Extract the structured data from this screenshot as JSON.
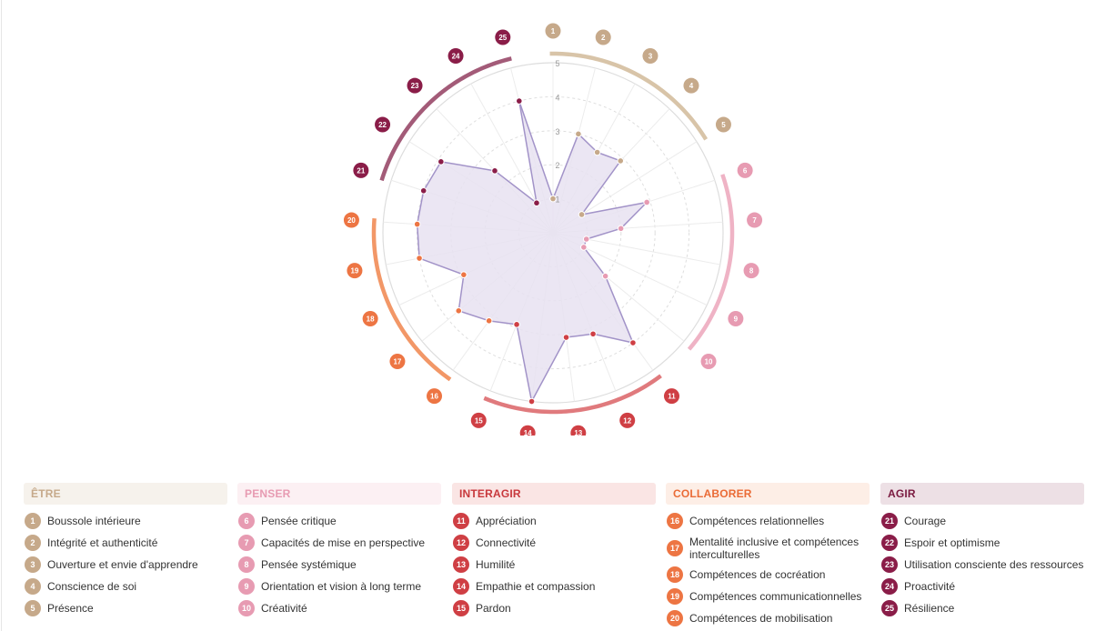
{
  "chart_data": {
    "type": "radar",
    "scale_max": 5,
    "scale_labels": [
      "1",
      "2",
      "3",
      "4",
      "5"
    ],
    "groups": [
      {
        "key": "etre",
        "title": "ÊTRE",
        "color": "#c6a98a",
        "text_color": "#c6a98a",
        "header_bg": "#f6f2ec",
        "items": [
          {
            "num": "1",
            "label": "Boussole intérieure",
            "value": 1
          },
          {
            "num": "2",
            "label": "Intégrité et authenticité",
            "value": 3
          },
          {
            "num": "3",
            "label": "Ouverture et envie d'apprendre",
            "value": 2.7
          },
          {
            "num": "4",
            "label": "Conscience de soi",
            "value": 2.9
          },
          {
            "num": "5",
            "label": "Présence",
            "value": 1
          }
        ]
      },
      {
        "key": "penser",
        "title": "PENSER",
        "color": "#e79bb2",
        "text_color": "#e79bb2",
        "header_bg": "#fcf0f3",
        "items": [
          {
            "num": "6",
            "label": "Pensée critique",
            "value": 2.9
          },
          {
            "num": "7",
            "label": "Capacités de mise en perspective",
            "value": 2
          },
          {
            "num": "8",
            "label": "Pensée systémique",
            "value": 1
          },
          {
            "num": "9",
            "label": "Orientation et vision à long terme",
            "value": 1
          },
          {
            "num": "10",
            "label": "Créativité",
            "value": 2
          }
        ]
      },
      {
        "key": "interagir",
        "title": "INTERAGIR",
        "color": "#cf3f44",
        "text_color": "#c8383c",
        "header_bg": "#fae5e4",
        "items": [
          {
            "num": "11",
            "label": "Appréciation",
            "value": 4
          },
          {
            "num": "12",
            "label": "Connectivité",
            "value": 3.2
          },
          {
            "num": "13",
            "label": "Humilité",
            "value": 3.1
          },
          {
            "num": "14",
            "label": "Empathie et compassion",
            "value": 5
          },
          {
            "num": "15",
            "label": "Pardon",
            "value": 2.9
          }
        ]
      },
      {
        "key": "collaborer",
        "title": "COLLABORER",
        "color": "#ed7543",
        "text_color": "#ea6b36",
        "header_bg": "#fdeee6",
        "items": [
          {
            "num": "16",
            "label": "Compétences relationnelles",
            "value": 3.2
          },
          {
            "num": "17",
            "label": "Mentalité inclusive et compétences interculturelles",
            "value": 3.6
          },
          {
            "num": "18",
            "label": "Compétences de cocréation",
            "value": 2.9
          },
          {
            "num": "19",
            "label": "Compétences communicationnelles",
            "value": 4
          },
          {
            "num": "20",
            "label": "Compétences de mobilisation",
            "value": 4
          }
        ]
      },
      {
        "key": "agir",
        "title": "AGIR",
        "color": "#8a1d48",
        "text_color": "#7a1a40",
        "header_bg": "#ede0e5",
        "items": [
          {
            "num": "21",
            "label": "Courage",
            "value": 4
          },
          {
            "num": "22",
            "label": "Espoir et optimisme",
            "value": 3.9
          },
          {
            "num": "23",
            "label": "Utilisation consciente des ressources",
            "value": 2.5
          },
          {
            "num": "24",
            "label": "Proactivité",
            "value": 1
          },
          {
            "num": "25",
            "label": "Résilience",
            "value": 4
          }
        ]
      }
    ],
    "fill_color": "#e7e2f1",
    "line_color": "#a293c8",
    "arc_colors": {
      "etre": "#d8c4a8",
      "penser": "#efb3c5",
      "interagir": "#e07a7d",
      "collaborer": "#f29767",
      "agir": "#a35b78"
    }
  }
}
